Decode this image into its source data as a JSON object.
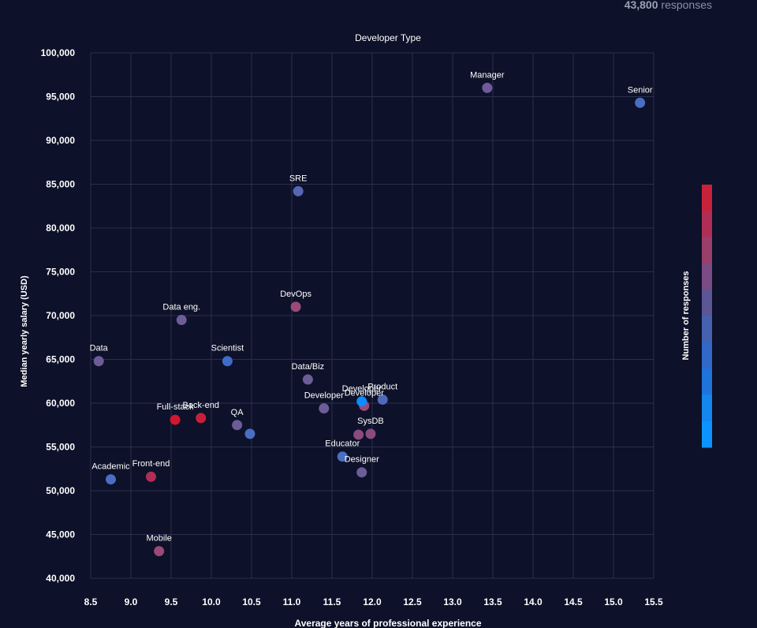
{
  "header": {
    "count": "43,800",
    "count_label": "responses"
  },
  "chart_data": {
    "type": "scatter",
    "title": "Developer Type",
    "xlabel": "Average years of professional experience",
    "ylabel": "Median yearly salary (USD)",
    "xlim": [
      8.5,
      15.5
    ],
    "ylim": [
      40000,
      100000
    ],
    "x_ticks": [
      "8.5",
      "9.0",
      "9.5",
      "10.0",
      "10.5",
      "11.0",
      "11.5",
      "12.0",
      "12.5",
      "13.0",
      "13.5",
      "14.0",
      "14.5",
      "15.0",
      "15.5"
    ],
    "y_ticks": [
      "40,000",
      "45,000",
      "50,000",
      "55,000",
      "60,000",
      "65,000",
      "70,000",
      "75,000",
      "80,000",
      "85,000",
      "90,000",
      "95,000",
      "100,000"
    ],
    "grid": true,
    "legend": {
      "title": "Number of responses",
      "placement": "right",
      "type": "colorscale",
      "colors_top_to_bottom": [
        "#c8223a",
        "#b02e55",
        "#9a3e6a",
        "#7a4b84",
        "#5b5696",
        "#4462b0",
        "#3268c8",
        "#1f74dc",
        "#1486ee",
        "#0b94ff"
      ]
    },
    "points": [
      {
        "label": "Manager",
        "x": 13.43,
        "y": 96000,
        "color": "#6f5a9a"
      },
      {
        "label": "Senior",
        "x": 15.33,
        "y": 94300,
        "color": "#4a6ec2"
      },
      {
        "label": "SRE",
        "x": 11.08,
        "y": 84200,
        "color": "#5666b2"
      },
      {
        "label": "DevOps",
        "x": 11.05,
        "y": 71000,
        "color": "#9a4a78"
      },
      {
        "label": "Data eng.",
        "x": 9.63,
        "y": 69500,
        "color": "#6c5d98"
      },
      {
        "label": "Data",
        "x": 8.6,
        "y": 64800,
        "color": "#6c5d98"
      },
      {
        "label": "Scientist",
        "x": 10.2,
        "y": 64800,
        "color": "#3f6cc8"
      },
      {
        "label": "Data/Biz",
        "x": 11.2,
        "y": 62700,
        "color": "#6c5d98"
      },
      {
        "label": "Product",
        "x": 12.13,
        "y": 60400,
        "color": "#5068b8"
      },
      {
        "label": "Developer",
        "x": 11.9,
        "y": 59700,
        "color": "#9a4a78"
      },
      {
        "label": "Developer",
        "x": 11.87,
        "y": 60200,
        "color": "#0f8cff"
      },
      {
        "label": "Developer",
        "x": 11.4,
        "y": 59400,
        "color": "#6c5d98"
      },
      {
        "label": "Full-stack",
        "x": 9.55,
        "y": 58100,
        "color": "#d0172f"
      },
      {
        "label": "Back-end",
        "x": 9.87,
        "y": 58300,
        "color": "#c61f3a"
      },
      {
        "label": "QA",
        "x": 10.32,
        "y": 57500,
        "color": "#6c5d98"
      },
      {
        "label": "",
        "x": 10.48,
        "y": 56500,
        "color": "#4a6ec2"
      },
      {
        "label": "SysDB",
        "x": 11.98,
        "y": 56500,
        "color": "#8a4b7e"
      },
      {
        "label": "",
        "x": 11.83,
        "y": 56400,
        "color": "#8a4b7e"
      },
      {
        "label": "Educator",
        "x": 11.63,
        "y": 53900,
        "color": "#4a6ec2"
      },
      {
        "label": "Designer",
        "x": 11.87,
        "y": 52100,
        "color": "#6c5d98"
      },
      {
        "label": "Academic",
        "x": 8.75,
        "y": 51300,
        "color": "#4a6ec2"
      },
      {
        "label": "Front-end",
        "x": 9.25,
        "y": 51600,
        "color": "#b02e55"
      },
      {
        "label": "Mobile",
        "x": 9.35,
        "y": 43100,
        "color": "#9a4a78"
      }
    ]
  }
}
